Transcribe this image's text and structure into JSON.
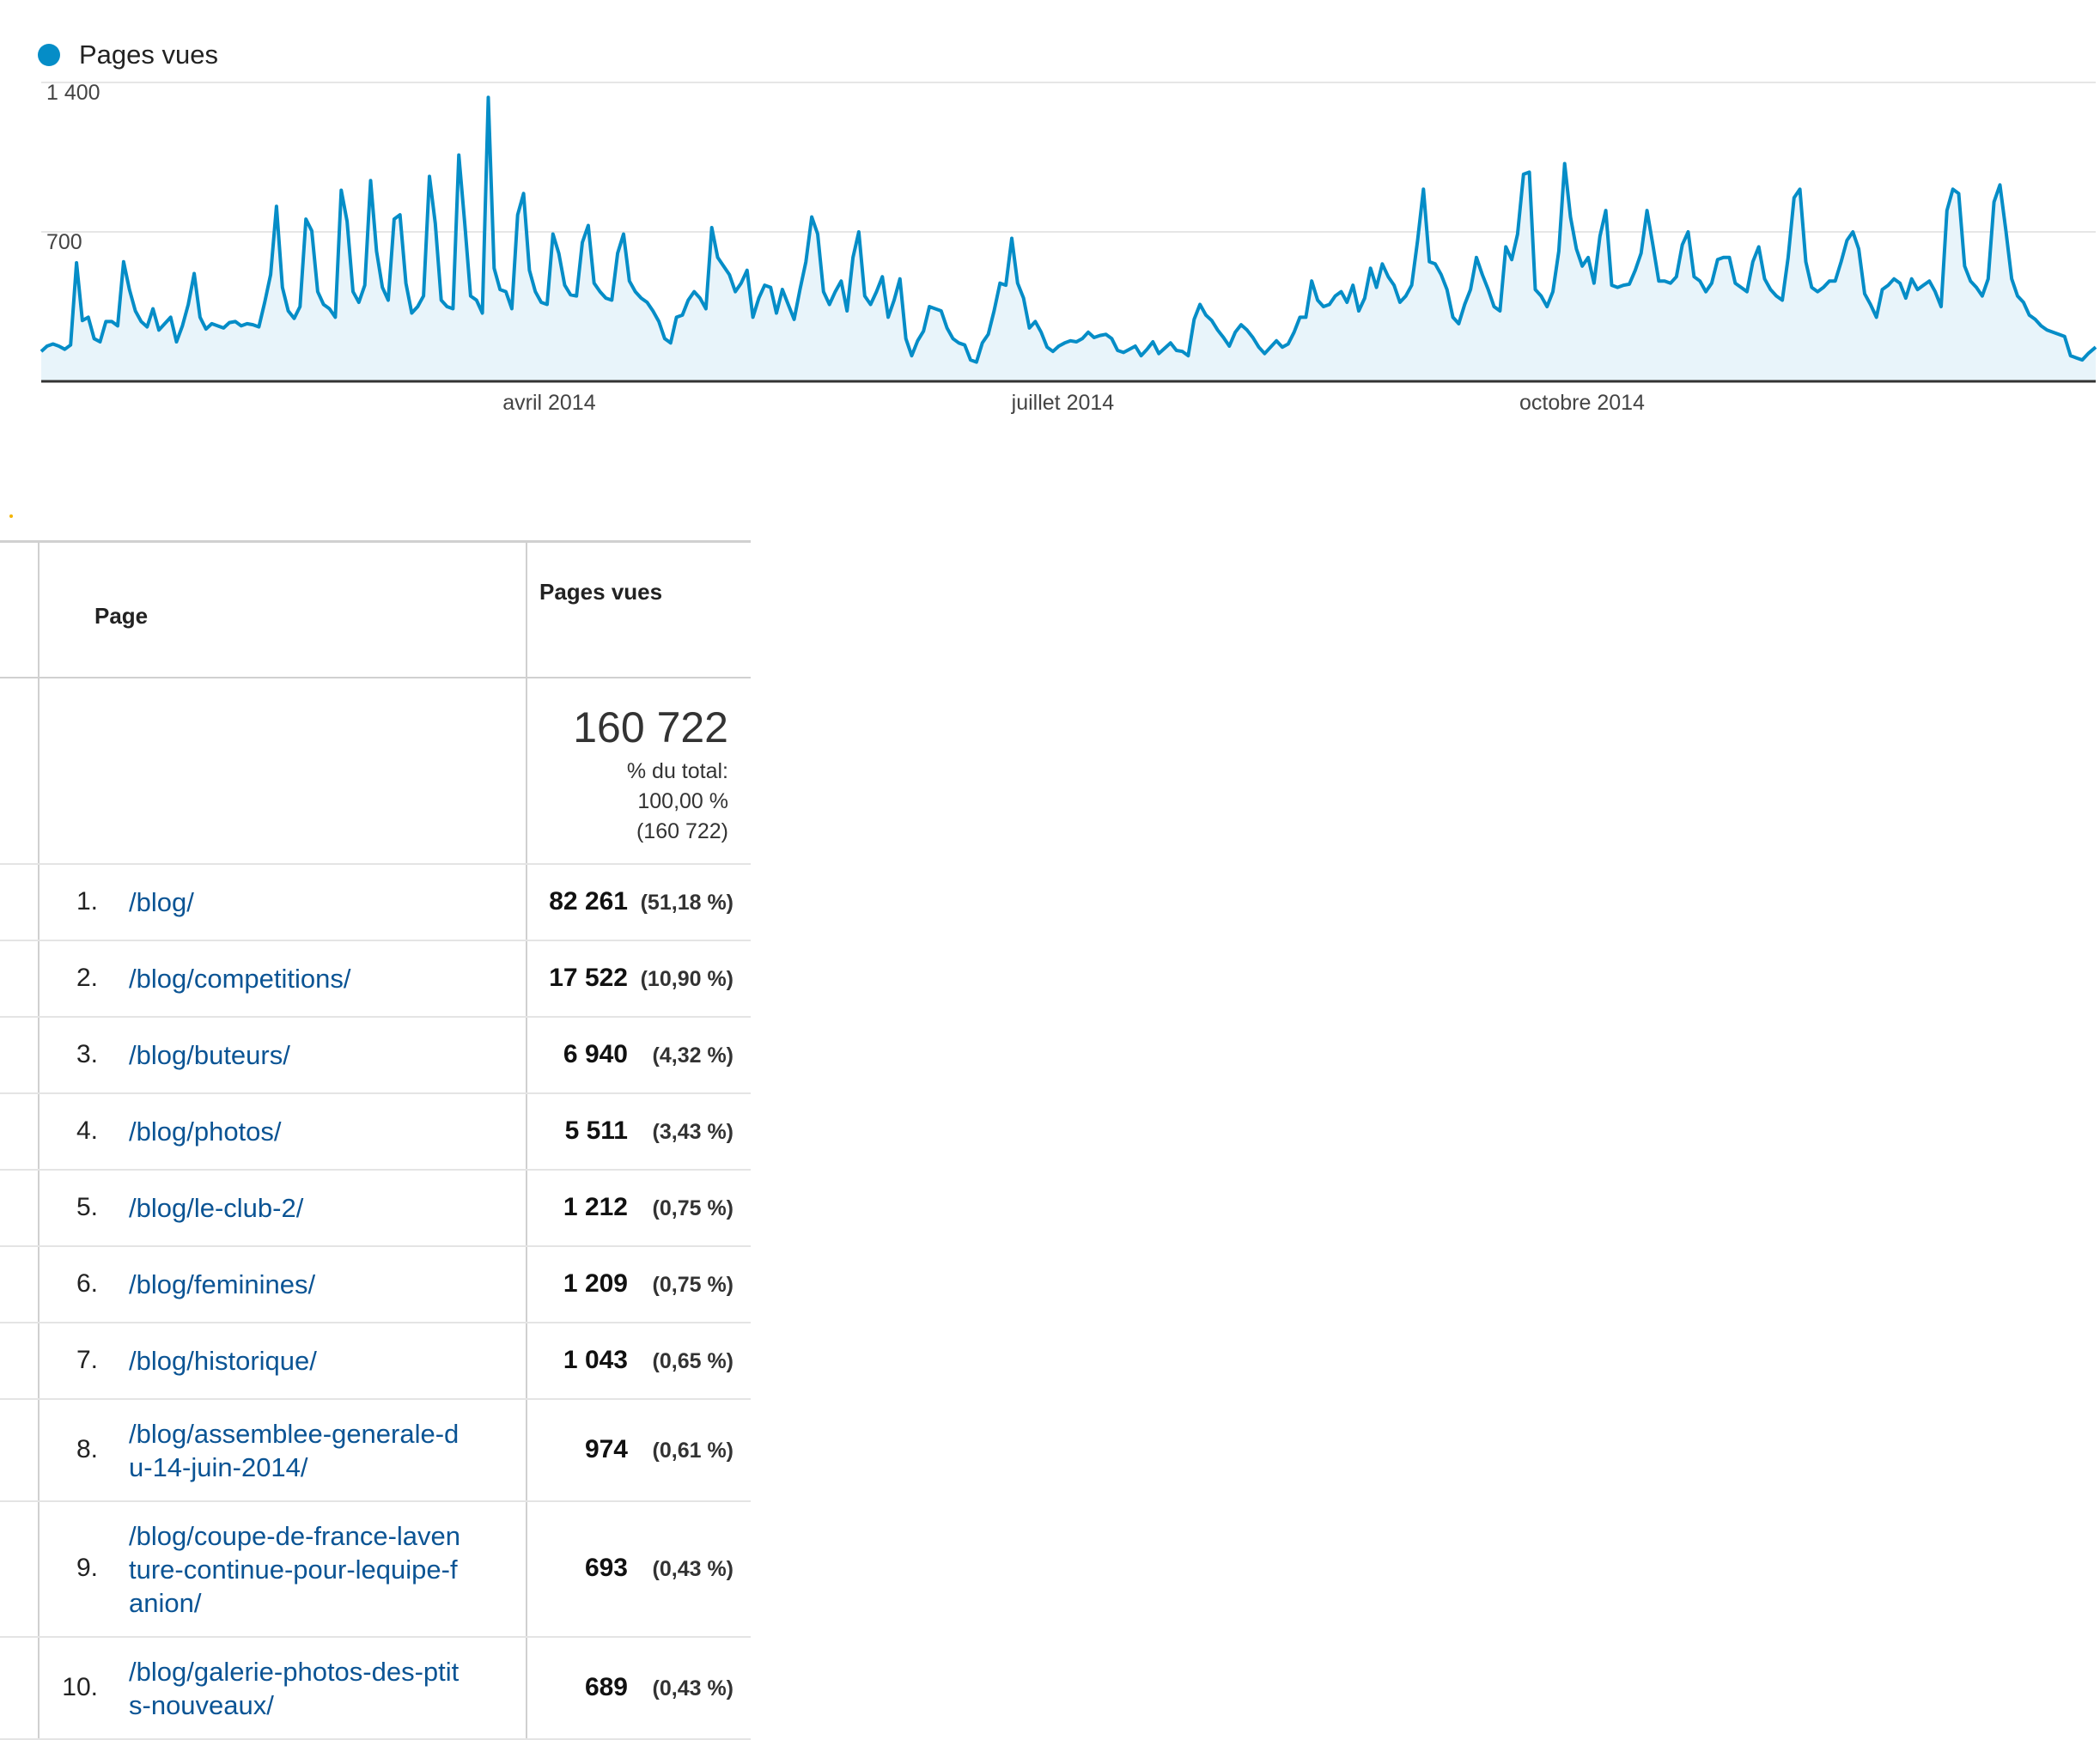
{
  "chart_data": {
    "type": "area",
    "series": [
      {
        "name": "Pages vues"
      }
    ],
    "ylim": [
      0,
      1400
    ],
    "y_ticks": [
      {
        "value": 700,
        "label": "700"
      },
      {
        "value": 1400,
        "label": "1 400"
      }
    ],
    "x_labels": [
      {
        "date": "2014-04-01",
        "label": "avril 2014"
      },
      {
        "date": "2014-07-01",
        "label": "juillet 2014"
      },
      {
        "date": "2014-10-01",
        "label": "octobre 2014"
      }
    ],
    "x_range": [
      "2014-01-01",
      "2014-12-31"
    ],
    "grid": true,
    "legend": "top-left",
    "colors": {
      "line": "#058dc7",
      "fill": "#e8f4fa"
    },
    "points": [
      [
        0,
        140
      ],
      [
        7,
        165
      ],
      [
        14,
        175
      ],
      [
        21,
        165
      ],
      [
        28,
        150
      ],
      [
        35,
        170
      ],
      [
        42,
        555
      ],
      [
        49,
        285
      ],
      [
        56,
        300
      ],
      [
        63,
        200
      ],
      [
        70,
        185
      ],
      [
        77,
        280
      ],
      [
        84,
        280
      ],
      [
        91,
        260
      ],
      [
        98,
        560
      ],
      [
        105,
        430
      ],
      [
        112,
        330
      ],
      [
        119,
        280
      ],
      [
        126,
        255
      ],
      [
        133,
        340
      ],
      [
        140,
        240
      ],
      [
        147,
        270
      ],
      [
        154,
        300
      ],
      [
        161,
        185
      ],
      [
        168,
        260
      ],
      [
        175,
        360
      ],
      [
        182,
        505
      ],
      [
        189,
        300
      ],
      [
        196,
        245
      ],
      [
        203,
        270
      ],
      [
        210,
        260
      ],
      [
        217,
        250
      ],
      [
        224,
        275
      ],
      [
        231,
        280
      ],
      [
        238,
        260
      ],
      [
        245,
        270
      ],
      [
        252,
        265
      ],
      [
        259,
        255
      ],
      [
        266,
        370
      ],
      [
        273,
        500
      ],
      [
        280,
        820
      ],
      [
        287,
        440
      ],
      [
        294,
        330
      ],
      [
        301,
        295
      ],
      [
        308,
        350
      ],
      [
        315,
        760
      ],
      [
        322,
        705
      ],
      [
        329,
        420
      ],
      [
        336,
        360
      ],
      [
        343,
        340
      ],
      [
        350,
        300
      ],
      [
        357,
        895
      ],
      [
        364,
        750
      ],
      [
        371,
        420
      ],
      [
        378,
        370
      ],
      [
        385,
        450
      ],
      [
        392,
        940
      ],
      [
        399,
        610
      ],
      [
        406,
        440
      ],
      [
        413,
        380
      ],
      [
        420,
        760
      ],
      [
        427,
        780
      ],
      [
        434,
        460
      ],
      [
        441,
        320
      ],
      [
        448,
        350
      ],
      [
        455,
        400
      ],
      [
        462,
        960
      ],
      [
        469,
        740
      ],
      [
        476,
        380
      ],
      [
        483,
        350
      ],
      [
        490,
        340
      ],
      [
        497,
        1060
      ],
      [
        504,
        740
      ],
      [
        511,
        400
      ],
      [
        518,
        380
      ],
      [
        525,
        320
      ],
      [
        532,
        1330
      ],
      [
        539,
        530
      ],
      [
        546,
        430
      ],
      [
        553,
        420
      ],
      [
        560,
        340
      ],
      [
        567,
        780
      ],
      [
        574,
        880
      ],
      [
        581,
        520
      ],
      [
        588,
        420
      ],
      [
        595,
        370
      ],
      [
        602,
        360
      ],
      [
        609,
        690
      ],
      [
        616,
        600
      ],
      [
        623,
        450
      ],
      [
        630,
        405
      ],
      [
        637,
        400
      ],
      [
        644,
        650
      ],
      [
        651,
        730
      ],
      [
        658,
        460
      ],
      [
        665,
        420
      ],
      [
        672,
        390
      ],
      [
        679,
        380
      ],
      [
        686,
        600
      ],
      [
        693,
        690
      ],
      [
        700,
        470
      ],
      [
        707,
        420
      ],
      [
        714,
        390
      ],
      [
        721,
        370
      ],
      [
        728,
        330
      ],
      [
        735,
        280
      ],
      [
        742,
        200
      ],
      [
        749,
        180
      ],
      [
        756,
        300
      ],
      [
        763,
        310
      ],
      [
        770,
        380
      ],
      [
        777,
        420
      ],
      [
        784,
        390
      ],
      [
        791,
        340
      ],
      [
        798,
        720
      ],
      [
        805,
        580
      ],
      [
        812,
        540
      ],
      [
        819,
        500
      ],
      [
        826,
        420
      ],
      [
        833,
        460
      ],
      [
        840,
        520
      ],
      [
        847,
        300
      ],
      [
        854,
        390
      ],
      [
        861,
        450
      ],
      [
        868,
        440
      ],
      [
        875,
        320
      ],
      [
        882,
        430
      ],
      [
        889,
        360
      ],
      [
        896,
        290
      ],
      [
        903,
        430
      ],
      [
        910,
        560
      ],
      [
        917,
        770
      ],
      [
        924,
        690
      ],
      [
        931,
        420
      ],
      [
        938,
        360
      ],
      [
        945,
        420
      ],
      [
        952,
        470
      ],
      [
        959,
        330
      ],
      [
        966,
        580
      ],
      [
        973,
        700
      ],
      [
        980,
        400
      ],
      [
        987,
        360
      ],
      [
        994,
        420
      ],
      [
        1001,
        490
      ],
      [
        1008,
        300
      ],
      [
        1015,
        380
      ],
      [
        1022,
        480
      ],
      [
        1029,
        200
      ],
      [
        1036,
        120
      ],
      [
        1043,
        190
      ],
      [
        1050,
        235
      ],
      [
        1057,
        350
      ],
      [
        1064,
        340
      ],
      [
        1071,
        330
      ],
      [
        1078,
        250
      ],
      [
        1085,
        200
      ],
      [
        1092,
        180
      ],
      [
        1099,
        170
      ],
      [
        1106,
        100
      ],
      [
        1113,
        90
      ],
      [
        1120,
        180
      ],
      [
        1127,
        220
      ],
      [
        1134,
        330
      ],
      [
        1141,
        460
      ],
      [
        1148,
        450
      ],
      [
        1155,
        670
      ],
      [
        1162,
        460
      ],
      [
        1169,
        390
      ],
      [
        1176,
        250
      ],
      [
        1183,
        280
      ],
      [
        1190,
        230
      ],
      [
        1197,
        160
      ],
      [
        1204,
        140
      ],
      [
        1211,
        165
      ],
      [
        1218,
        180
      ],
      [
        1225,
        190
      ],
      [
        1232,
        185
      ],
      [
        1239,
        200
      ],
      [
        1246,
        230
      ],
      [
        1253,
        205
      ],
      [
        1260,
        215
      ],
      [
        1267,
        220
      ],
      [
        1274,
        200
      ],
      [
        1281,
        145
      ],
      [
        1288,
        135
      ],
      [
        1295,
        150
      ],
      [
        1302,
        165
      ],
      [
        1309,
        120
      ],
      [
        1316,
        150
      ],
      [
        1323,
        185
      ],
      [
        1330,
        130
      ],
      [
        1337,
        155
      ],
      [
        1344,
        180
      ],
      [
        1351,
        145
      ],
      [
        1358,
        140
      ],
      [
        1365,
        120
      ],
      [
        1372,
        290
      ],
      [
        1379,
        360
      ],
      [
        1386,
        310
      ],
      [
        1393,
        285
      ],
      [
        1400,
        240
      ],
      [
        1407,
        205
      ],
      [
        1414,
        165
      ],
      [
        1421,
        230
      ],
      [
        1428,
        265
      ],
      [
        1435,
        240
      ],
      [
        1442,
        205
      ],
      [
        1449,
        160
      ],
      [
        1456,
        130
      ],
      [
        1463,
        160
      ],
      [
        1470,
        190
      ],
      [
        1477,
        160
      ],
      [
        1484,
        175
      ],
      [
        1491,
        230
      ],
      [
        1498,
        300
      ],
      [
        1505,
        300
      ],
      [
        1512,
        470
      ],
      [
        1519,
        380
      ],
      [
        1526,
        350
      ],
      [
        1533,
        360
      ],
      [
        1540,
        400
      ],
      [
        1547,
        420
      ],
      [
        1554,
        370
      ],
      [
        1561,
        450
      ],
      [
        1568,
        330
      ],
      [
        1575,
        390
      ],
      [
        1582,
        530
      ],
      [
        1589,
        440
      ],
      [
        1596,
        550
      ],
      [
        1603,
        490
      ],
      [
        1610,
        450
      ],
      [
        1617,
        370
      ],
      [
        1624,
        400
      ],
      [
        1631,
        450
      ],
      [
        1638,
        660
      ],
      [
        1645,
        900
      ],
      [
        1652,
        560
      ],
      [
        1659,
        550
      ],
      [
        1666,
        500
      ],
      [
        1673,
        430
      ],
      [
        1680,
        300
      ],
      [
        1687,
        270
      ],
      [
        1694,
        360
      ],
      [
        1701,
        430
      ],
      [
        1708,
        580
      ],
      [
        1715,
        500
      ],
      [
        1722,
        430
      ],
      [
        1729,
        350
      ],
      [
        1736,
        330
      ],
      [
        1743,
        630
      ],
      [
        1750,
        570
      ],
      [
        1757,
        690
      ],
      [
        1764,
        970
      ],
      [
        1771,
        980
      ],
      [
        1778,
        430
      ],
      [
        1785,
        400
      ],
      [
        1792,
        350
      ],
      [
        1799,
        420
      ],
      [
        1806,
        610
      ],
      [
        1813,
        1020
      ],
      [
        1820,
        770
      ],
      [
        1827,
        620
      ],
      [
        1834,
        540
      ],
      [
        1841,
        580
      ],
      [
        1848,
        460
      ],
      [
        1855,
        680
      ],
      [
        1862,
        800
      ],
      [
        1869,
        450
      ],
      [
        1876,
        440
      ],
      [
        1883,
        450
      ],
      [
        1890,
        455
      ],
      [
        1897,
        520
      ],
      [
        1904,
        600
      ],
      [
        1911,
        800
      ],
      [
        1918,
        640
      ],
      [
        1925,
        470
      ],
      [
        1932,
        470
      ],
      [
        1939,
        460
      ],
      [
        1946,
        490
      ],
      [
        1953,
        640
      ],
      [
        1960,
        700
      ],
      [
        1967,
        490
      ],
      [
        1974,
        470
      ],
      [
        1981,
        420
      ],
      [
        1988,
        460
      ],
      [
        1995,
        570
      ],
      [
        2002,
        580
      ],
      [
        2009,
        580
      ],
      [
        2016,
        460
      ],
      [
        2023,
        440
      ],
      [
        2030,
        420
      ],
      [
        2037,
        560
      ],
      [
        2044,
        630
      ],
      [
        2051,
        480
      ],
      [
        2058,
        430
      ],
      [
        2065,
        400
      ],
      [
        2072,
        380
      ],
      [
        2079,
        580
      ],
      [
        2086,
        860
      ],
      [
        2093,
        900
      ],
      [
        2100,
        560
      ],
      [
        2107,
        440
      ],
      [
        2114,
        420
      ],
      [
        2121,
        440
      ],
      [
        2128,
        470
      ],
      [
        2135,
        470
      ],
      [
        2142,
        560
      ],
      [
        2149,
        660
      ],
      [
        2156,
        700
      ],
      [
        2163,
        620
      ],
      [
        2170,
        410
      ],
      [
        2177,
        360
      ],
      [
        2184,
        300
      ],
      [
        2191,
        430
      ],
      [
        2198,
        450
      ],
      [
        2205,
        480
      ],
      [
        2212,
        460
      ],
      [
        2219,
        390
      ],
      [
        2226,
        480
      ],
      [
        2233,
        430
      ],
      [
        2240,
        450
      ],
      [
        2247,
        470
      ],
      [
        2254,
        420
      ],
      [
        2261,
        350
      ],
      [
        2268,
        800
      ],
      [
        2275,
        900
      ],
      [
        2282,
        880
      ],
      [
        2289,
        540
      ],
      [
        2296,
        470
      ],
      [
        2303,
        440
      ],
      [
        2310,
        400
      ],
      [
        2317,
        480
      ],
      [
        2324,
        840
      ],
      [
        2331,
        920
      ],
      [
        2338,
        710
      ],
      [
        2345,
        480
      ],
      [
        2352,
        400
      ],
      [
        2359,
        370
      ],
      [
        2366,
        310
      ],
      [
        2373,
        290
      ],
      [
        2380,
        260
      ],
      [
        2387,
        240
      ],
      [
        2394,
        230
      ],
      [
        2401,
        220
      ],
      [
        2408,
        210
      ],
      [
        2415,
        120
      ],
      [
        2422,
        110
      ],
      [
        2429,
        100
      ],
      [
        2436,
        130
      ],
      [
        2445,
        160
      ]
    ]
  },
  "table": {
    "headers": {
      "page": "Page",
      "pageviews": "Pages vues"
    },
    "total": {
      "value": "160 722",
      "line1": "% du total:",
      "line2": "100,00 %",
      "line3": "(160 722)"
    },
    "rows": [
      {
        "num": "1.",
        "lines": [
          "/blog/"
        ],
        "value": "82 261",
        "pct": "(51,18 %)"
      },
      {
        "num": "2.",
        "lines": [
          "/blog/competitions/"
        ],
        "value": "17 522",
        "pct": "(10,90 %)"
      },
      {
        "num": "3.",
        "lines": [
          "/blog/buteurs/"
        ],
        "value": "6 940",
        "pct": "(4,32 %)"
      },
      {
        "num": "4.",
        "lines": [
          "/blog/photos/"
        ],
        "value": "5 511",
        "pct": "(3,43 %)"
      },
      {
        "num": "5.",
        "lines": [
          "/blog/le-club-2/"
        ],
        "value": "1 212",
        "pct": "(0,75 %)"
      },
      {
        "num": "6.",
        "lines": [
          "/blog/feminines/"
        ],
        "value": "1 209",
        "pct": "(0,75 %)"
      },
      {
        "num": "7.",
        "lines": [
          "/blog/historique/"
        ],
        "value": "1 043",
        "pct": "(0,65 %)"
      },
      {
        "num": "8.",
        "lines": [
          "/blog/assemblee-generale-d",
          "u-14-juin-2014/"
        ],
        "value": "974",
        "pct": "(0,61 %)"
      },
      {
        "num": "9.",
        "lines": [
          "/blog/coupe-de-france-laven",
          "ture-continue-pour-lequipe-f",
          "anion/"
        ],
        "value": "693",
        "pct": "(0,43 %)"
      },
      {
        "num": "10.",
        "lines": [
          "/blog/galerie-photos-des-ptit",
          "s-nouveaux/"
        ],
        "value": "689",
        "pct": "(0,43 %)"
      }
    ]
  }
}
